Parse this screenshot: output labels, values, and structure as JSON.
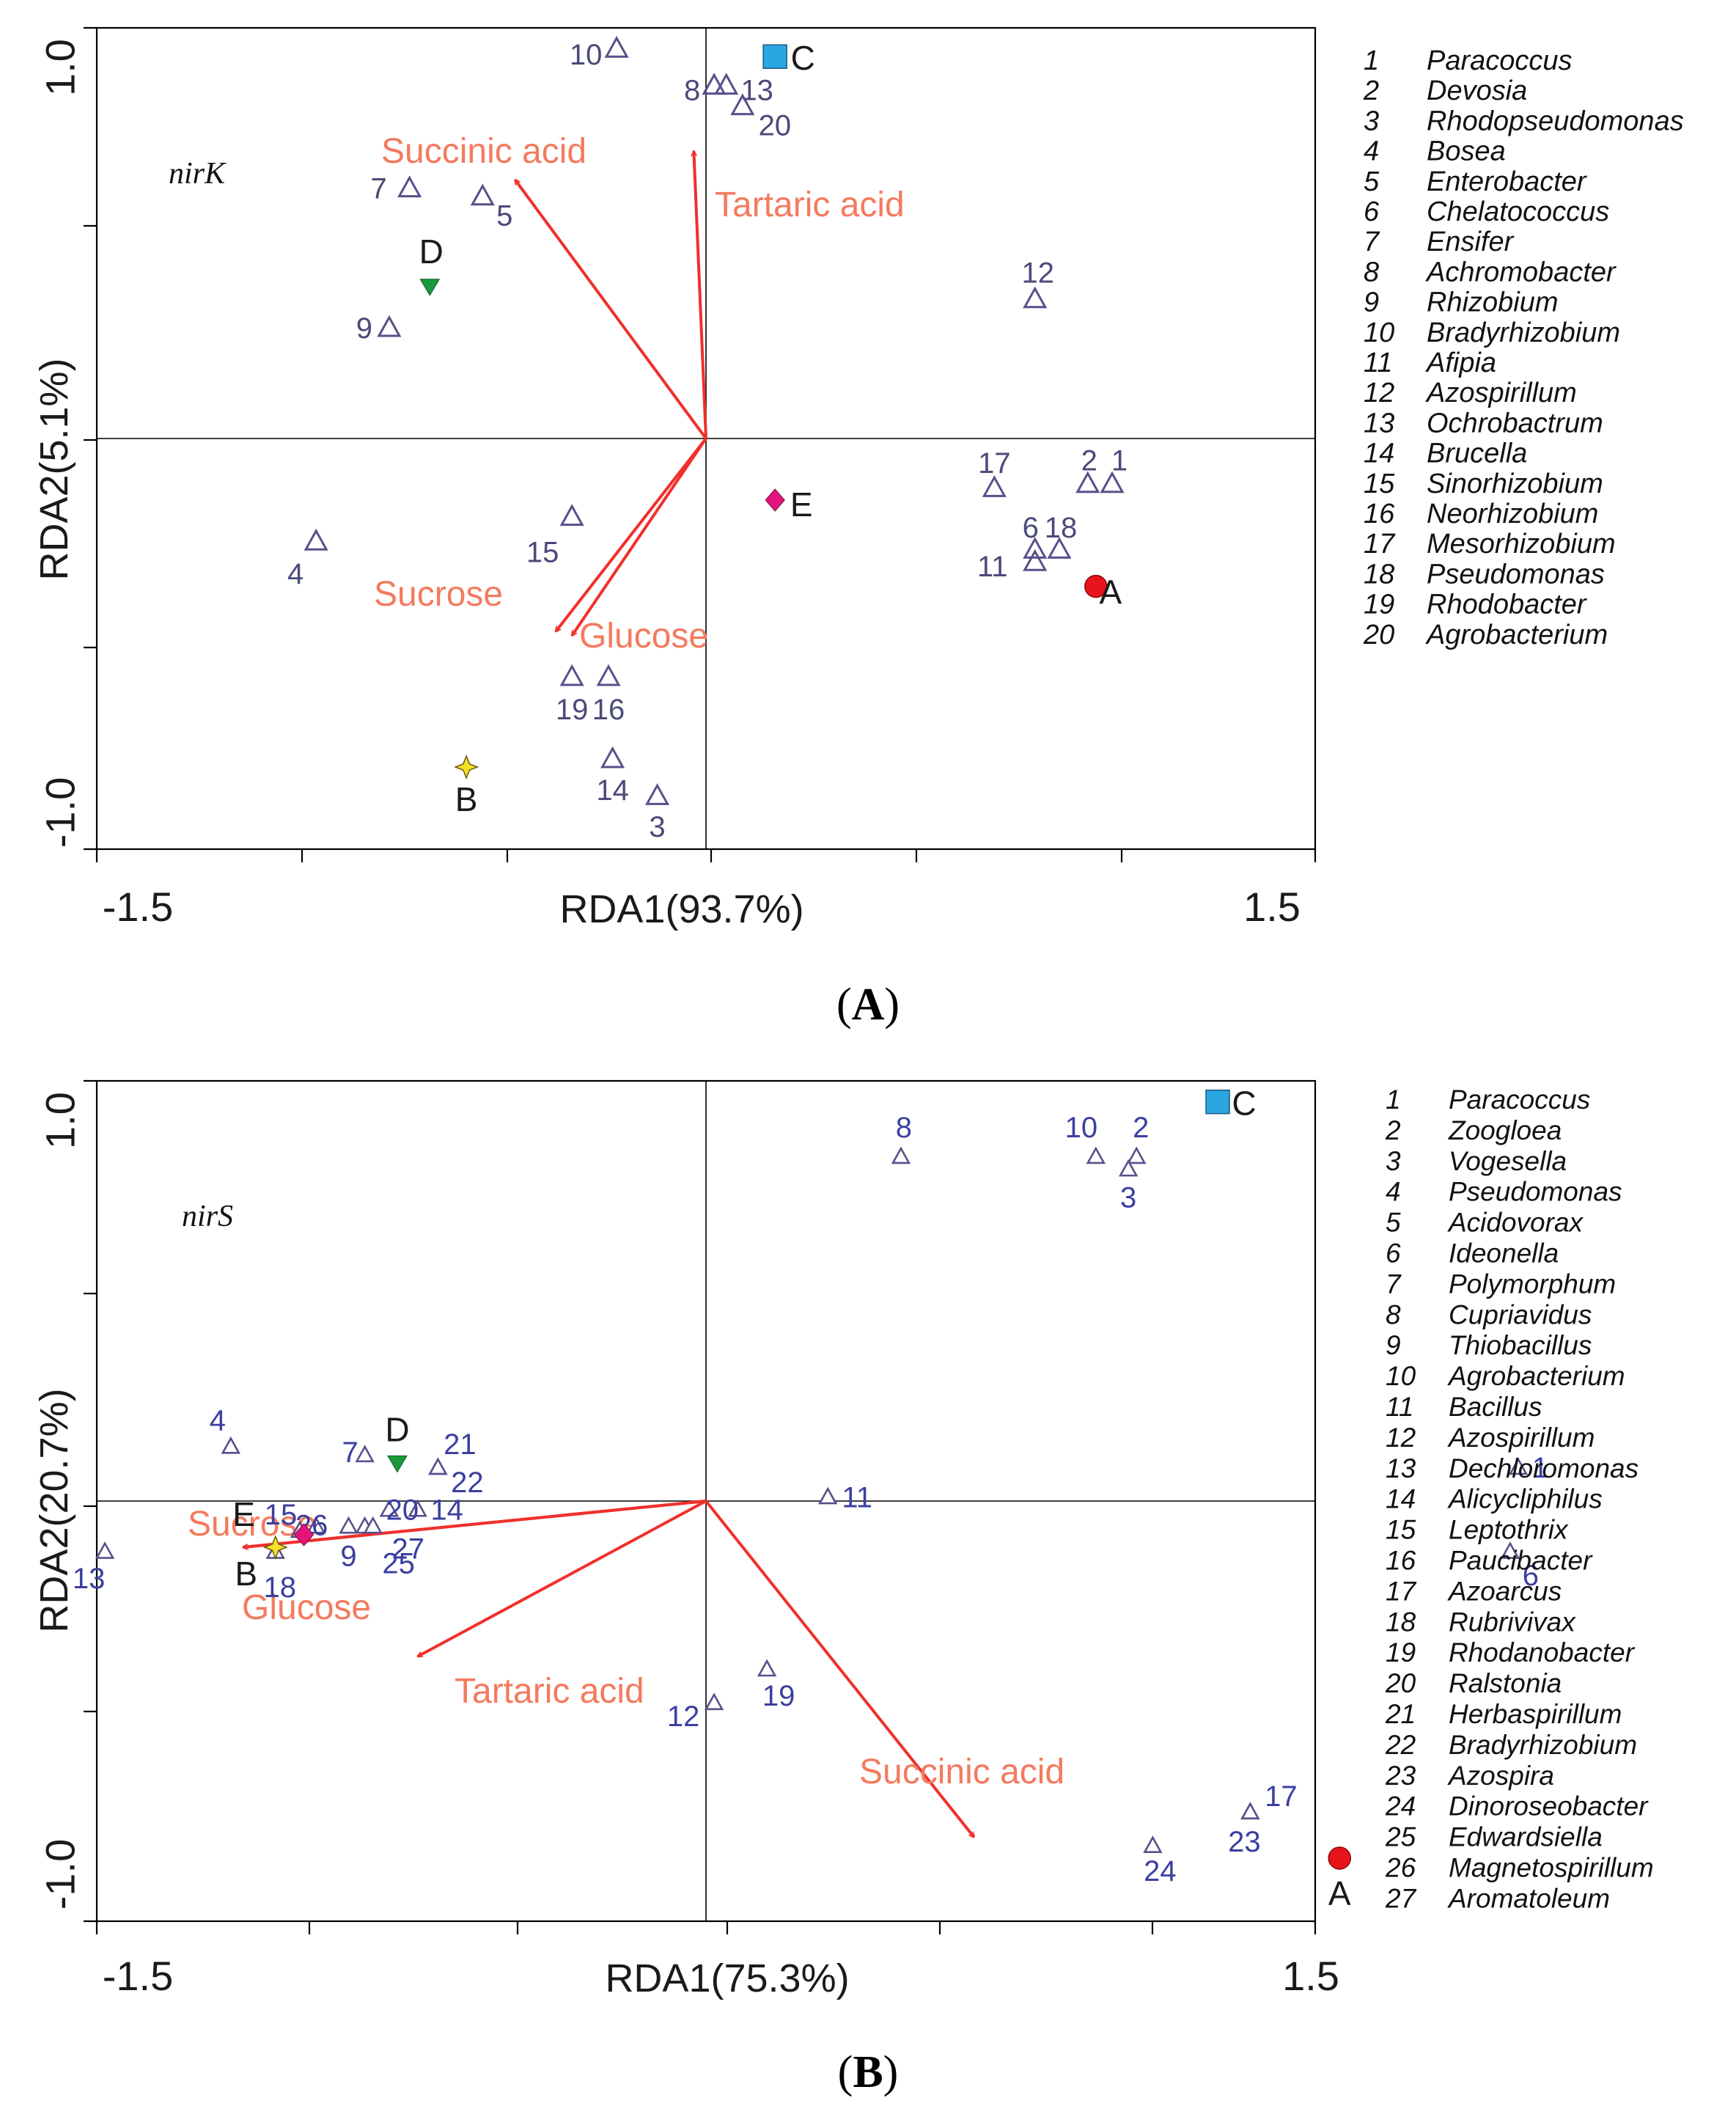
{
  "chart_data": [
    {
      "type": "scatter",
      "panel_label": "A",
      "plot_label": "nirK",
      "xlabel": "RDA1(93.7%)",
      "ylabel": "RDA2(5.1%)",
      "xlim": [
        -1.5,
        1.5
      ],
      "ylim": [
        -1.0,
        1.0
      ],
      "x_tick_labels": [
        "-1.5",
        "1.5"
      ],
      "y_tick_labels": [
        "1.0",
        "-1.0"
      ],
      "grid": false,
      "legend_position": "right",
      "arrows": [
        {
          "label": "Succinic acid",
          "x": -0.47,
          "y": 0.63
        },
        {
          "label": "Tartaric acid",
          "x": -0.03,
          "y": 0.7
        },
        {
          "label": "Sucrose",
          "x": -0.37,
          "y": -0.47
        },
        {
          "label": "Glucose",
          "x": -0.33,
          "y": -0.48
        }
      ],
      "samples": [
        {
          "label": "A",
          "shape": "circle",
          "color": "#e8141c",
          "x": 0.96,
          "y": -0.36
        },
        {
          "label": "B",
          "shape": "star",
          "color": "#f3e12a",
          "x": -0.59,
          "y": -0.8
        },
        {
          "label": "C",
          "shape": "square",
          "color": "#2aa6e0",
          "x": 0.17,
          "y": 0.93
        },
        {
          "label": "D",
          "shape": "triangle-down",
          "color": "#1a9a3c",
          "x": -0.68,
          "y": 0.37
        },
        {
          "label": "E",
          "shape": "diamond",
          "color": "#e2157f",
          "x": 0.17,
          "y": -0.15
        }
      ],
      "species": [
        {
          "id": "1",
          "x": 1.0,
          "y": -0.11
        },
        {
          "id": "2",
          "x": 0.94,
          "y": -0.11
        },
        {
          "id": "3",
          "x": -0.12,
          "y": -0.87
        },
        {
          "id": "4",
          "x": -0.96,
          "y": -0.25
        },
        {
          "id": "5",
          "x": -0.55,
          "y": 0.59
        },
        {
          "id": "6",
          "x": 0.81,
          "y": -0.27
        },
        {
          "id": "7",
          "x": -0.73,
          "y": 0.61
        },
        {
          "id": "8",
          "x": 0.02,
          "y": 0.86
        },
        {
          "id": "9",
          "x": -0.78,
          "y": 0.27
        },
        {
          "id": "10",
          "x": -0.22,
          "y": 0.95
        },
        {
          "id": "11",
          "x": 0.81,
          "y": -0.3
        },
        {
          "id": "12",
          "x": 0.81,
          "y": 0.34
        },
        {
          "id": "13",
          "x": 0.05,
          "y": 0.86
        },
        {
          "id": "14",
          "x": -0.23,
          "y": -0.78
        },
        {
          "id": "15",
          "x": -0.33,
          "y": -0.19
        },
        {
          "id": "16",
          "x": -0.24,
          "y": -0.58
        },
        {
          "id": "17",
          "x": 0.71,
          "y": -0.12
        },
        {
          "id": "18",
          "x": 0.87,
          "y": -0.27
        },
        {
          "id": "19",
          "x": -0.33,
          "y": -0.58
        },
        {
          "id": "20",
          "x": 0.09,
          "y": 0.81
        }
      ],
      "legend": [
        {
          "num": "1",
          "name": "Paracoccus"
        },
        {
          "num": "2",
          "name": "Devosia"
        },
        {
          "num": "3",
          "name": "Rhodopseudomonas"
        },
        {
          "num": "4",
          "name": "Bosea"
        },
        {
          "num": "5",
          "name": "Enterobacter"
        },
        {
          "num": "6",
          "name": "Chelatococcus"
        },
        {
          "num": "7",
          "name": "Ensifer"
        },
        {
          "num": "8",
          "name": "Achromobacter"
        },
        {
          "num": "9",
          "name": "Rhizobium"
        },
        {
          "num": "10",
          "name": "Bradyrhizobium"
        },
        {
          "num": "11",
          "name": "Afipia"
        },
        {
          "num": "12",
          "name": "Azospirillum"
        },
        {
          "num": "13",
          "name": "Ochrobactrum"
        },
        {
          "num": "14",
          "name": "Brucella"
        },
        {
          "num": "15",
          "name": "Sinorhizobium"
        },
        {
          "num": "16",
          "name": "Neorhizobium"
        },
        {
          "num": "17",
          "name": "Mesorhizobium"
        },
        {
          "num": "18",
          "name": "Pseudomonas"
        },
        {
          "num": "19",
          "name": "Rhodobacter"
        },
        {
          "num": "20",
          "name": "Agrobacterium"
        }
      ]
    },
    {
      "type": "scatter",
      "panel_label": "B",
      "plot_label": "nirS",
      "xlabel": "RDA1(75.3%)",
      "ylabel": "RDA2(20.7%)",
      "xlim": [
        -1.5,
        1.5
      ],
      "ylim": [
        -1.0,
        1.0
      ],
      "x_tick_labels": [
        "-1.5",
        "1.5"
      ],
      "y_tick_labels": [
        "1.0",
        "-1.0"
      ],
      "grid": false,
      "legend_position": "right",
      "arrows": [
        {
          "label": "Sucrose",
          "x": -1.14,
          "y": -0.11
        },
        {
          "label": "Glucose",
          "x": -1.14,
          "y": -0.11
        },
        {
          "label": "Tartaric acid",
          "x": -0.71,
          "y": -0.37
        },
        {
          "label": "Succinic acid",
          "x": 0.66,
          "y": -0.8
        }
      ],
      "samples": [
        {
          "label": "A",
          "shape": "circle",
          "color": "#e8141c",
          "x": 1.56,
          "y": -0.85
        },
        {
          "label": "B",
          "shape": "star",
          "color": "#f3e12a",
          "x": -1.06,
          "y": -0.11
        },
        {
          "label": "C",
          "shape": "square",
          "color": "#2aa6e0",
          "x": 1.26,
          "y": 0.95
        },
        {
          "label": "D",
          "shape": "triangle-down",
          "color": "#1a9a3c",
          "x": -0.76,
          "y": 0.09
        },
        {
          "label": "E",
          "shape": "diamond",
          "color": "#e2157f",
          "x": -0.99,
          "y": -0.08
        }
      ],
      "species": [
        {
          "id": "1",
          "x": 2.0,
          "y": 0.08
        },
        {
          "id": "2",
          "x": 1.06,
          "y": 0.82
        },
        {
          "id": "3",
          "x": 1.04,
          "y": 0.79
        },
        {
          "id": "4",
          "x": -1.17,
          "y": 0.13
        },
        {
          "id": "5",
          "x": -1.97,
          "y": -0.17
        },
        {
          "id": "6",
          "x": 1.98,
          "y": -0.12
        },
        {
          "id": "7",
          "x": -0.84,
          "y": 0.11
        },
        {
          "id": "8",
          "x": 0.48,
          "y": 0.82
        },
        {
          "id": "9",
          "x": -0.88,
          "y": -0.06
        },
        {
          "id": "10",
          "x": 0.96,
          "y": 0.82
        },
        {
          "id": "11",
          "x": 0.3,
          "y": 0.01
        },
        {
          "id": "12",
          "x": 0.02,
          "y": -0.48
        },
        {
          "id": "13",
          "x": -1.48,
          "y": -0.12
        },
        {
          "id": "14",
          "x": -0.71,
          "y": -0.02
        },
        {
          "id": "15",
          "x": -1.0,
          "y": -0.07
        },
        {
          "id": "16",
          "x": -1.97,
          "y": -0.1
        },
        {
          "id": "17",
          "x": 1.34,
          "y": -0.74
        },
        {
          "id": "18",
          "x": -1.06,
          "y": -0.12
        },
        {
          "id": "19",
          "x": 0.15,
          "y": -0.4
        },
        {
          "id": "20",
          "x": -0.78,
          "y": -0.02
        },
        {
          "id": "21",
          "x": -0.66,
          "y": 0.08
        },
        {
          "id": "22",
          "x": -0.66,
          "y": 0.08
        },
        {
          "id": "23",
          "x": 1.34,
          "y": -0.74
        },
        {
          "id": "24",
          "x": 1.1,
          "y": -0.82
        },
        {
          "id": "25",
          "x": -0.84,
          "y": -0.06
        },
        {
          "id": "26",
          "x": -0.96,
          "y": -0.06
        },
        {
          "id": "27",
          "x": -0.82,
          "y": -0.06
        }
      ],
      "legend": [
        {
          "num": "1",
          "name": "Paracoccus"
        },
        {
          "num": "2",
          "name": "Zoogloea"
        },
        {
          "num": "3",
          "name": "Vogesella"
        },
        {
          "num": "4",
          "name": "Pseudomonas"
        },
        {
          "num": "5",
          "name": "Acidovorax"
        },
        {
          "num": "6",
          "name": "Ideonella"
        },
        {
          "num": "7",
          "name": "Polymorphum"
        },
        {
          "num": "8",
          "name": "Cupriavidus"
        },
        {
          "num": "9",
          "name": "Thiobacillus"
        },
        {
          "num": "10",
          "name": "Agrobacterium"
        },
        {
          "num": "11",
          "name": "Bacillus"
        },
        {
          "num": "12",
          "name": "Azospirillum"
        },
        {
          "num": "13",
          "name": "Dechloromonas"
        },
        {
          "num": "14",
          "name": "Alicycliphilus"
        },
        {
          "num": "15",
          "name": "Leptothrix"
        },
        {
          "num": "16",
          "name": "Paucibacter"
        },
        {
          "num": "17",
          "name": "Azoarcus"
        },
        {
          "num": "18",
          "name": "Rubrivivax"
        },
        {
          "num": "19",
          "name": "Rhodanobacter"
        },
        {
          "num": "20",
          "name": "Ralstonia"
        },
        {
          "num": "21",
          "name": "Herbaspirillum"
        },
        {
          "num": "22",
          "name": "Bradyrhizobium"
        },
        {
          "num": "23",
          "name": "Azospira"
        },
        {
          "num": "24",
          "name": "Dinoroseobacter"
        },
        {
          "num": "25",
          "name": "Edwardsiella"
        },
        {
          "num": "26",
          "name": "Magnetospirillum"
        },
        {
          "num": "27",
          "name": "Aromatoleum"
        }
      ]
    }
  ],
  "colors": {
    "arrow": "#f0302c",
    "arrow_label": "#f47a5e",
    "species_marker": "#5a4f8a",
    "species_label_a": "#4a4a7a",
    "species_label_b": "#3b3fa0",
    "axis": "#000000"
  }
}
